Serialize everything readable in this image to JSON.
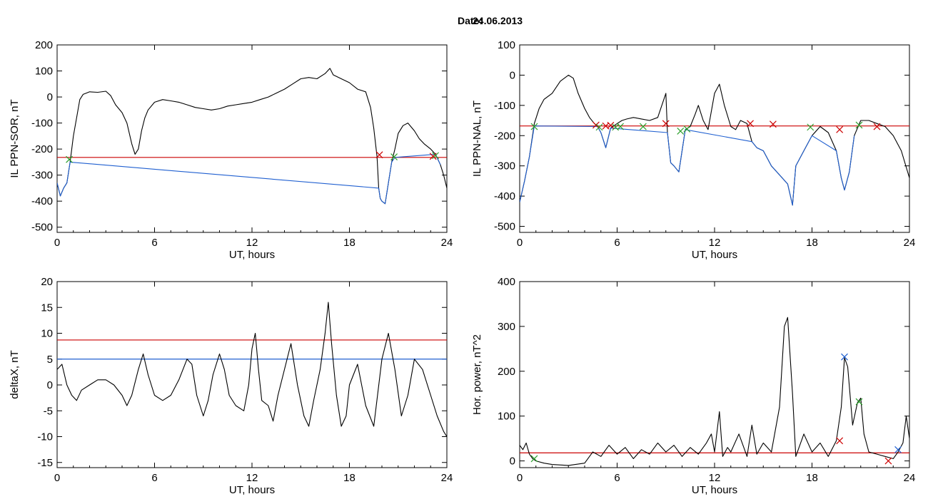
{
  "header": {
    "date_label": "Date:",
    "date_value": "24.06.2013"
  },
  "chart_data": [
    {
      "type": "line",
      "id": "sor",
      "xlabel": "UT, hours",
      "ylabel": "IL PPN-SOR, nT",
      "xlim": [
        0,
        24
      ],
      "ylim": [
        -520,
        200
      ],
      "xticks": [
        0,
        6,
        12,
        18,
        24
      ],
      "yticks": [
        200,
        100,
        0,
        -100,
        -200,
        -300,
        -400,
        -500
      ],
      "threshold": {
        "value": -232,
        "color": "#cc0000"
      },
      "series": [
        {
          "color": "#000000",
          "x": [
            0,
            0.2,
            0.4,
            0.6,
            0.8,
            1.0,
            1.2,
            1.4,
            1.6,
            1.8,
            2.0,
            2.5,
            3.0,
            3.3,
            3.6,
            4.0,
            4.3,
            4.6,
            4.8,
            5.0,
            5.2,
            5.4,
            5.6,
            6.0,
            6.5,
            7.0,
            7.5,
            8.0,
            8.5,
            9.0,
            9.5,
            10.0,
            10.5,
            11.0,
            11.5,
            12.0,
            12.5,
            13.0,
            13.5,
            14.0,
            14.5,
            15.0,
            15.5,
            16.0,
            16.5,
            16.8,
            17.0,
            17.5,
            18.0,
            18.5,
            19.0,
            19.3,
            19.5,
            19.7,
            19.8,
            19.9,
            20.0,
            20.2,
            20.4,
            20.6,
            20.8,
            21.0,
            21.3,
            21.6,
            22.0,
            22.3,
            22.6,
            23.0,
            23.3,
            23.6,
            23.8,
            24.0
          ],
          "y": [
            -330,
            -380,
            -350,
            -330,
            -250,
            -150,
            -80,
            -10,
            10,
            15,
            20,
            18,
            22,
            5,
            -30,
            -60,
            -100,
            -180,
            -220,
            -200,
            -130,
            -80,
            -50,
            -20,
            -10,
            -15,
            -20,
            -30,
            -40,
            -45,
            -50,
            -45,
            -35,
            -30,
            -25,
            -20,
            -10,
            0,
            15,
            30,
            50,
            70,
            75,
            70,
            90,
            110,
            85,
            70,
            55,
            30,
            20,
            -40,
            -120,
            -230,
            -350,
            -390,
            -400,
            -410,
            -330,
            -250,
            -200,
            -140,
            -110,
            -100,
            -130,
            -160,
            -180,
            -200,
            -220,
            -260,
            -300,
            -350
          ]
        },
        {
          "color": "#1f5fd0",
          "x": [
            0,
            0.2,
            0.4,
            0.6,
            0.8,
            19.8,
            19.9,
            20.0,
            20.2,
            20.4,
            20.6,
            20.8,
            23.3,
            23.6
          ],
          "y": [
            -330,
            -380,
            -350,
            -330,
            -250,
            -350,
            -390,
            -400,
            -410,
            -330,
            -250,
            -232,
            -220,
            -260
          ]
        }
      ],
      "markers": [
        {
          "x": 0.75,
          "y": -240,
          "color": "#2ca02c"
        },
        {
          "x": 19.85,
          "y": -222,
          "color": "#cc0000"
        },
        {
          "x": 20.75,
          "y": -230,
          "color": "#2ca02c"
        },
        {
          "x": 23.15,
          "y": -228,
          "color": "#cc0000"
        },
        {
          "x": 23.3,
          "y": -225,
          "color": "#2ca02c"
        }
      ]
    },
    {
      "type": "line",
      "id": "nal",
      "xlabel": "UT, hours",
      "ylabel": "IL PPN-NAL, nT",
      "xlim": [
        0,
        24
      ],
      "ylim": [
        -520,
        100
      ],
      "xticks": [
        0,
        6,
        12,
        18,
        24
      ],
      "yticks": [
        100,
        0,
        -100,
        -200,
        -300,
        -400,
        -500
      ],
      "threshold": {
        "value": -168,
        "color": "#cc0000"
      },
      "series": [
        {
          "color": "#000000",
          "x": [
            0,
            0.3,
            0.6,
            0.9,
            1.2,
            1.5,
            2.0,
            2.5,
            3.0,
            3.3,
            3.6,
            4.0,
            4.3,
            4.6,
            4.8,
            5.0,
            5.3,
            5.6,
            6.0,
            6.3,
            6.6,
            7.0,
            7.5,
            8.0,
            8.5,
            9.0,
            9.1,
            9.3,
            9.5,
            9.8,
            10.0,
            10.2,
            10.5,
            10.8,
            11.0,
            11.3,
            11.6,
            12.0,
            12.3,
            12.6,
            13.0,
            13.3,
            13.6,
            14.0,
            14.3,
            14.6,
            15.0,
            15.5,
            16.0,
            16.5,
            16.8,
            17.0,
            17.5,
            18.0,
            18.5,
            19.0,
            19.5,
            19.8,
            20.0,
            20.3,
            20.6,
            21.0,
            21.5,
            22.0,
            22.5,
            23.0,
            23.5,
            24.0
          ],
          "y": [
            -420,
            -350,
            -270,
            -160,
            -110,
            -80,
            -60,
            -20,
            0,
            -10,
            -60,
            -110,
            -140,
            -160,
            -170,
            -190,
            -240,
            -175,
            -160,
            -150,
            -145,
            -140,
            -145,
            -150,
            -140,
            -60,
            -190,
            -290,
            -300,
            -320,
            -250,
            -180,
            -170,
            -130,
            -100,
            -150,
            -180,
            -60,
            -30,
            -100,
            -170,
            -180,
            -150,
            -160,
            -220,
            -240,
            -250,
            -300,
            -330,
            -360,
            -430,
            -300,
            -250,
            -200,
            -170,
            -190,
            -250,
            -340,
            -380,
            -320,
            -200,
            -150,
            -150,
            -160,
            -170,
            -200,
            -250,
            -340
          ]
        },
        {
          "color": "#1f5fd0",
          "x": [
            0,
            0.3,
            0.6,
            0.9,
            4.8,
            5.0,
            5.3,
            5.6,
            9.1,
            9.3,
            9.5,
            9.8,
            10.0,
            10.2,
            14.3,
            14.6,
            15.0,
            15.5,
            16.0,
            16.5,
            16.8,
            17.0,
            17.5,
            18.0,
            19.5,
            19.8,
            20.0,
            20.3,
            20.6
          ],
          "y": [
            -420,
            -350,
            -270,
            -168,
            -170,
            -190,
            -240,
            -175,
            -190,
            -290,
            -300,
            -320,
            -250,
            -180,
            -220,
            -240,
            -250,
            -300,
            -330,
            -360,
            -430,
            -300,
            -250,
            -200,
            -250,
            -340,
            -380,
            -320,
            -200
          ]
        }
      ],
      "markers": [
        {
          "x": 0.9,
          "y": -170,
          "color": "#2ca02c"
        },
        {
          "x": 4.7,
          "y": -165,
          "color": "#cc0000"
        },
        {
          "x": 4.9,
          "y": -172,
          "color": "#2ca02c"
        },
        {
          "x": 5.3,
          "y": -168,
          "color": "#cc0000"
        },
        {
          "x": 5.6,
          "y": -166,
          "color": "#cc0000"
        },
        {
          "x": 5.9,
          "y": -172,
          "color": "#2ca02c"
        },
        {
          "x": 6.2,
          "y": -170,
          "color": "#2ca02c"
        },
        {
          "x": 7.6,
          "y": -170,
          "color": "#2ca02c"
        },
        {
          "x": 9.0,
          "y": -160,
          "color": "#cc0000"
        },
        {
          "x": 9.9,
          "y": -185,
          "color": "#2ca02c"
        },
        {
          "x": 10.3,
          "y": -178,
          "color": "#2ca02c"
        },
        {
          "x": 14.2,
          "y": -160,
          "color": "#cc0000"
        },
        {
          "x": 15.6,
          "y": -162,
          "color": "#cc0000"
        },
        {
          "x": 17.9,
          "y": -172,
          "color": "#2ca02c"
        },
        {
          "x": 19.7,
          "y": -180,
          "color": "#cc0000"
        },
        {
          "x": 20.9,
          "y": -165,
          "color": "#2ca02c"
        },
        {
          "x": 22.0,
          "y": -170,
          "color": "#cc0000"
        }
      ]
    },
    {
      "type": "line",
      "id": "deltax",
      "xlabel": "UT, hours",
      "ylabel": "deltaX, nT",
      "xlim": [
        0,
        24
      ],
      "ylim": [
        -16,
        20
      ],
      "xticks": [
        0,
        6,
        12,
        18,
        24
      ],
      "yticks": [
        20,
        15,
        10,
        5,
        0,
        -5,
        -10,
        -15
      ],
      "threshold": {
        "value": 8.7,
        "color": "#cc0000"
      },
      "threshold2": {
        "value": 5.0,
        "color": "#1f5fd0"
      },
      "series": [
        {
          "color": "#000000",
          "x": [
            0,
            0.3,
            0.6,
            0.9,
            1.2,
            1.5,
            2.0,
            2.5,
            3.0,
            3.5,
            4.0,
            4.3,
            4.6,
            5.0,
            5.3,
            5.6,
            6.0,
            6.5,
            7.0,
            7.5,
            8.0,
            8.3,
            8.6,
            9.0,
            9.3,
            9.6,
            10.0,
            10.3,
            10.6,
            11.0,
            11.5,
            11.8,
            12.0,
            12.2,
            12.4,
            12.6,
            13.0,
            13.3,
            13.6,
            14.0,
            14.4,
            14.8,
            15.2,
            15.5,
            15.8,
            16.2,
            16.5,
            16.7,
            16.9,
            17.2,
            17.5,
            17.8,
            18.0,
            18.5,
            19.0,
            19.5,
            20.0,
            20.4,
            20.8,
            21.2,
            21.6,
            22.0,
            22.5,
            23.0,
            23.4,
            23.8,
            24.0
          ],
          "y": [
            3,
            4,
            0,
            -2,
            -3,
            -1,
            0,
            1,
            1,
            0,
            -2,
            -4,
            -2,
            3,
            6,
            2,
            -2,
            -3,
            -2,
            1,
            5,
            4,
            -2,
            -6,
            -3,
            2,
            6,
            3,
            -2,
            -4,
            -5,
            0,
            7,
            10,
            3,
            -3,
            -4,
            -7,
            -2,
            3,
            8,
            0,
            -6,
            -8,
            -3,
            3,
            10,
            16,
            8,
            -2,
            -8,
            -6,
            0,
            4,
            -4,
            -8,
            5,
            10,
            3,
            -6,
            -2,
            5,
            3,
            -2,
            -6,
            -9,
            -10
          ]
        }
      ],
      "markers": []
    },
    {
      "type": "line",
      "id": "power",
      "xlabel": "UT, hours",
      "ylabel": "Hor. power, nT^2",
      "xlim": [
        0,
        24
      ],
      "ylim": [
        -15,
        400
      ],
      "xticks": [
        0,
        6,
        12,
        18,
        24
      ],
      "yticks": [
        400,
        300,
        200,
        100,
        0
      ],
      "threshold": {
        "value": 18,
        "color": "#cc0000"
      },
      "series": [
        {
          "color": "#000000",
          "x": [
            0,
            0.2,
            0.4,
            0.6,
            0.8,
            1.0,
            1.5,
            2.0,
            3.0,
            4.0,
            4.5,
            5.0,
            5.5,
            6.0,
            6.5,
            7.0,
            7.5,
            8.0,
            8.5,
            9.0,
            9.5,
            10.0,
            10.5,
            11.0,
            11.5,
            11.8,
            12.0,
            12.3,
            12.5,
            12.8,
            13.0,
            13.5,
            14.0,
            14.3,
            14.6,
            15.0,
            15.5,
            16.0,
            16.3,
            16.5,
            16.8,
            17.0,
            17.5,
            18.0,
            18.5,
            19.0,
            19.5,
            19.8,
            20.0,
            20.2,
            20.5,
            20.8,
            21.0,
            21.2,
            21.5,
            22.0,
            22.5,
            23.0,
            23.3,
            23.6,
            23.8,
            24.0
          ],
          "y": [
            35,
            25,
            40,
            15,
            5,
            0,
            -5,
            -8,
            -10,
            -5,
            20,
            10,
            35,
            15,
            30,
            5,
            25,
            15,
            40,
            20,
            35,
            10,
            30,
            15,
            40,
            60,
            20,
            110,
            10,
            30,
            20,
            60,
            10,
            80,
            15,
            40,
            20,
            120,
            300,
            320,
            150,
            10,
            60,
            20,
            40,
            10,
            45,
            120,
            230,
            210,
            80,
            130,
            140,
            60,
            20,
            15,
            10,
            5,
            20,
            40,
            100,
            50
          ]
        }
      ],
      "markers": [
        {
          "x": 0.9,
          "y": 5,
          "color": "#2ca02c"
        },
        {
          "x": 19.7,
          "y": 45,
          "color": "#cc0000"
        },
        {
          "x": 20.0,
          "y": 232,
          "color": "#1f5fd0"
        },
        {
          "x": 20.9,
          "y": 132,
          "color": "#2ca02c"
        },
        {
          "x": 22.7,
          "y": 0,
          "color": "#cc0000"
        },
        {
          "x": 23.3,
          "y": 25,
          "color": "#1f5fd0"
        }
      ]
    }
  ]
}
